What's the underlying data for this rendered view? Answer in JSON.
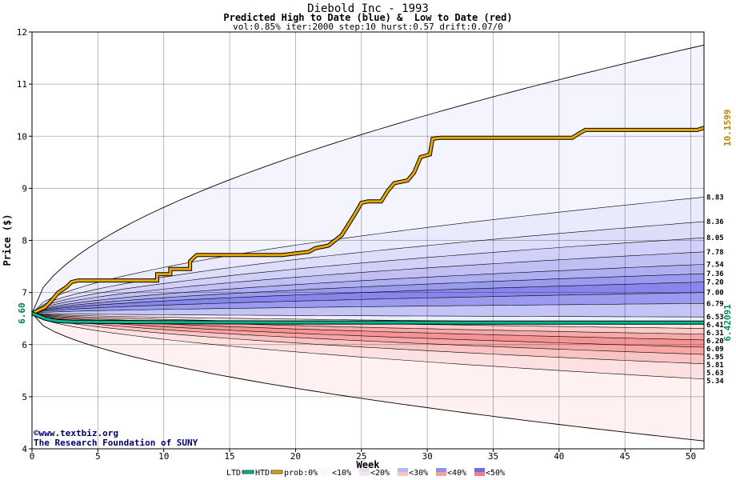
{
  "chart_data": {
    "type": "area",
    "title": "Diebold Inc - 1993",
    "subtitle": "Predicted High to Date (blue) &  Low to Date (red)",
    "params": "vol:0.85% iter:2000 step:10 hurst:0.57 drift:0.07/0",
    "xlabel": "Week",
    "ylabel": "Price ($)",
    "xlim": [
      0,
      51
    ],
    "ylim": [
      4,
      12
    ],
    "x_ticks": [
      0,
      5,
      10,
      15,
      20,
      25,
      30,
      35,
      40,
      45,
      50
    ],
    "y_ticks": [
      4,
      5,
      6,
      7,
      8,
      9,
      10,
      11,
      12
    ],
    "grid": true,
    "start_value": 6.6,
    "start_label": "6.60",
    "htd_end_label": "10.1599",
    "ltd_end_label": "6.42091",
    "percentile_end_labels": [
      "8.83",
      "8.36",
      "8.05",
      "7.78",
      "7.54",
      "7.36",
      "7.20",
      "7.00",
      "6.79",
      "6.53",
      "6.41",
      "6.31",
      "6.20",
      "6.09",
      "5.95",
      "5.81",
      "5.63",
      "5.34"
    ],
    "percentile_end_values": [
      8.83,
      8.36,
      8.05,
      7.78,
      7.54,
      7.36,
      7.2,
      7.0,
      6.79,
      6.53,
      6.41,
      6.31,
      6.2,
      6.09,
      5.95,
      5.81,
      5.63,
      5.34
    ],
    "envelope_high_end": 11.75,
    "envelope_low_end": 4.15,
    "series": [
      {
        "name": "HTD",
        "color": "#e8a800",
        "x": [
          0,
          1,
          1.5,
          2,
          2.6,
          3,
          3.5,
          9.5,
          9.5,
          10.5,
          10.5,
          12,
          12,
          12.5,
          19,
          21,
          21.5,
          22.5,
          23,
          23.5,
          24,
          24.5,
          25,
          25.5,
          26.5,
          27,
          27.5,
          28.5,
          29,
          29.5,
          30.2,
          30.4,
          31,
          41,
          41.5,
          42,
          50.5,
          51
        ],
        "y": [
          6.6,
          6.72,
          6.85,
          7.0,
          7.1,
          7.2,
          7.23,
          7.23,
          7.35,
          7.35,
          7.45,
          7.45,
          7.6,
          7.72,
          7.72,
          7.78,
          7.85,
          7.9,
          8.0,
          8.1,
          8.3,
          8.5,
          8.72,
          8.75,
          8.75,
          8.95,
          9.1,
          9.15,
          9.3,
          9.6,
          9.65,
          9.95,
          9.97,
          9.97,
          10.05,
          10.12,
          10.12,
          10.16
        ]
      },
      {
        "name": "LTD",
        "color": "#00b890",
        "x": [
          0,
          0.5,
          1,
          1.5,
          2,
          3,
          5,
          10,
          20,
          30,
          40,
          51
        ],
        "y": [
          6.6,
          6.55,
          6.5,
          6.47,
          6.45,
          6.44,
          6.435,
          6.43,
          6.425,
          6.423,
          6.421,
          6.421
        ]
      }
    ],
    "legend": {
      "placement": "bottom",
      "ltd": "LTD",
      "htd": "HTD",
      "prob": "prob:0%",
      "items": [
        "<10%",
        "<20%",
        "<30%",
        "<40%",
        "<50%"
      ],
      "colors": [
        "#f8f8ff",
        "#e0e0fb",
        "#b8b8f4",
        "#9090ee",
        "#6c6ce8"
      ],
      "red_colors": [
        "#fff4f4",
        "#fde2e2",
        "#fbc4c4",
        "#f8a0a0",
        "#f47c7c"
      ]
    },
    "watermark": [
      "©www.textbiz.org",
      "The Research Foundation of SUNY"
    ]
  }
}
